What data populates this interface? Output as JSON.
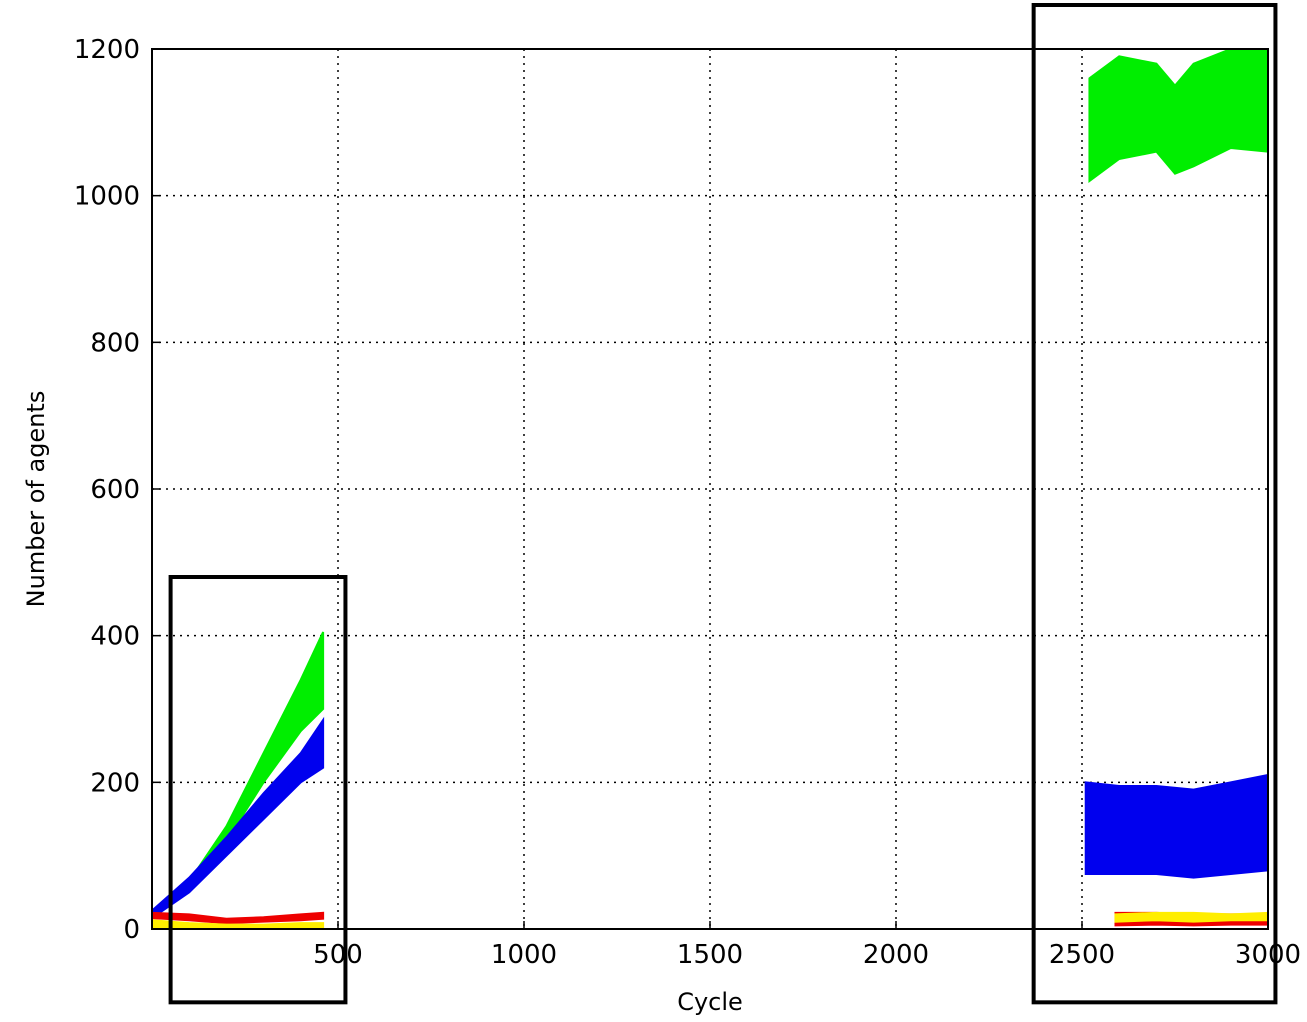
{
  "chart_data": {
    "type": "area",
    "xlabel": "Cycle",
    "ylabel": "Number of agents",
    "xlim": [
      0,
      3000
    ],
    "ylim": [
      0,
      1200
    ],
    "xticks": [
      500,
      1000,
      1500,
      2000,
      2500,
      3000
    ],
    "yticks": [
      0,
      200,
      400,
      600,
      800,
      1000,
      1200
    ],
    "xtick_labels": [
      "500",
      "1000",
      "1500",
      "2000",
      "2500",
      "3000"
    ],
    "ytick_labels": [
      "0",
      "200",
      "400",
      "600",
      "800",
      "1000",
      "1200"
    ],
    "grid": true,
    "legend": "none",
    "series": [
      {
        "color": "#00ee00",
        "segments": [
          {
            "x": [
              0,
              100,
              200,
              300,
              400,
              460
            ],
            "low": [
              18,
              55,
              120,
              200,
              270,
              300
            ],
            "high": [
              22,
              65,
              140,
              240,
              340,
              405
            ]
          },
          {
            "x": [
              2520,
              2600,
              2700,
              2750,
              2800,
              2900,
              3000
            ],
            "low": [
              1020,
              1050,
              1060,
              1030,
              1040,
              1065,
              1060
            ],
            "high": [
              1160,
              1190,
              1180,
              1150,
              1180,
              1200,
              1200
            ]
          }
        ]
      },
      {
        "color": "#0000ee",
        "segments": [
          {
            "x": [
              0,
              100,
              200,
              300,
              400,
              460
            ],
            "low": [
              15,
              50,
              100,
              150,
              200,
              220
            ],
            "high": [
              25,
              70,
              125,
              185,
              240,
              285
            ]
          },
          {
            "x": [
              2510,
              2600,
              2700,
              2800,
              2900,
              3000
            ],
            "low": [
              75,
              75,
              75,
              70,
              75,
              80
            ],
            "high": [
              200,
              195,
              195,
              190,
              200,
              210
            ]
          }
        ]
      },
      {
        "color": "#ee0000",
        "segments": [
          {
            "x": [
              0,
              100,
              200,
              300,
              400,
              460
            ],
            "low": [
              15,
              12,
              8,
              10,
              12,
              14
            ],
            "high": [
              22,
              20,
              14,
              16,
              20,
              22
            ]
          },
          {
            "x": [
              2590,
              2700,
              2800,
              2900,
              3000
            ],
            "low": [
              5,
              6,
              5,
              6,
              6
            ],
            "high": [
              22,
              22,
              20,
              20,
              20
            ]
          }
        ]
      },
      {
        "color": "#ffee00",
        "segments": [
          {
            "x": [
              0,
              100,
              200,
              300,
              400,
              460
            ],
            "low": [
              2,
              2,
              2,
              2,
              2,
              2
            ],
            "high": [
              12,
              8,
              6,
              6,
              8,
              8
            ]
          },
          {
            "x": [
              2590,
              2700,
              2800,
              2900,
              3000
            ],
            "low": [
              10,
              12,
              10,
              12,
              12
            ],
            "high": [
              20,
              22,
              22,
              20,
              22
            ]
          }
        ]
      }
    ],
    "highlight_boxes": [
      {
        "x": [
          50,
          520
        ],
        "y": [
          -100,
          480
        ]
      },
      {
        "x": [
          2370,
          3020
        ],
        "y": [
          -100,
          1260
        ]
      }
    ]
  }
}
